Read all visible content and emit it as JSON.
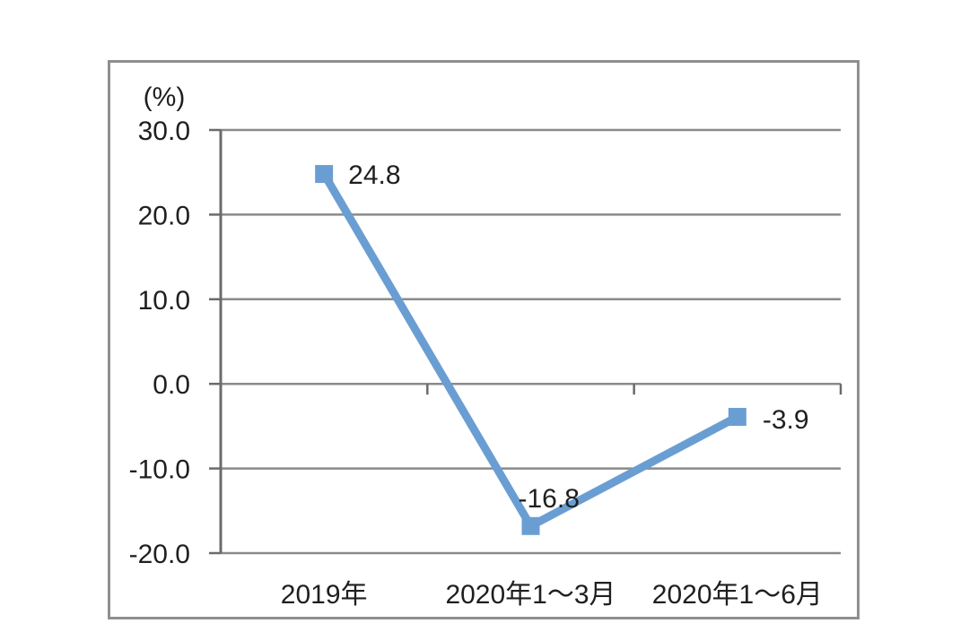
{
  "chart_data": {
    "type": "line",
    "title": "",
    "unit_label": "(%)",
    "categories": [
      "2019年",
      "2020年1～3月",
      "2020年1～6月"
    ],
    "values": [
      24.8,
      -16.8,
      -3.9
    ],
    "data_labels": [
      "24.8",
      "-16.8",
      "-3.9"
    ],
    "y_tick_labels": [
      "30.0",
      "20.0",
      "10.0",
      "0.0",
      "-10.0",
      "-20.0"
    ],
    "ylim": [
      -20,
      30
    ],
    "y_tick_step": 10,
    "grid": true,
    "legend": false,
    "marker": "square",
    "colors": {
      "line": "#6A9ED3",
      "marker": "#6A9ED3",
      "grid": "#8A8A8A",
      "axis": "#6B6B6B",
      "border": "#8F8F8F",
      "text": "#1F1F1F",
      "background": "#FFFFFF"
    }
  }
}
